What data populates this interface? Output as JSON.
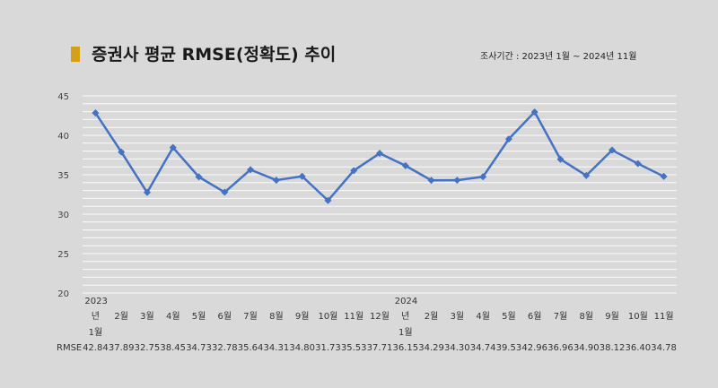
{
  "title": "증권사 평균 RMSE(정확도) 추이",
  "period": "조사기간 : 2023년 1월 ~ 2024년 11월",
  "colors": {
    "line": "#4472c4",
    "marker_bar": "#d4a017",
    "grid": "#ffffff"
  },
  "chart_data": {
    "type": "line",
    "title": "증권사 평균 RMSE(정확도) 추이",
    "xlabel": "",
    "ylabel": "",
    "ylim": [
      20,
      45
    ],
    "yticks": [
      20,
      25,
      30,
      35,
      40,
      45
    ],
    "grid": true,
    "legend": "none",
    "categories": [
      [
        "2023",
        "년",
        "1월"
      ],
      [
        "2월"
      ],
      [
        "3월"
      ],
      [
        "4월"
      ],
      [
        "5월"
      ],
      [
        "6월"
      ],
      [
        "7월"
      ],
      [
        "8월"
      ],
      [
        "9월"
      ],
      [
        "10월"
      ],
      [
        "11월"
      ],
      [
        "12월"
      ],
      [
        "2024",
        "년",
        "1월"
      ],
      [
        "2월"
      ],
      [
        "3월"
      ],
      [
        "4월"
      ],
      [
        "5월"
      ],
      [
        "6월"
      ],
      [
        "7월"
      ],
      [
        "8월"
      ],
      [
        "9월"
      ],
      [
        "10월"
      ],
      [
        "11월"
      ]
    ],
    "table_row_label": "RMSE",
    "series": [
      {
        "name": "RMSE",
        "values": [
          42.84,
          37.89,
          32.75,
          38.45,
          34.73,
          32.78,
          35.64,
          34.31,
          34.8,
          31.73,
          35.53,
          37.71,
          36.15,
          34.29,
          34.3,
          34.74,
          39.53,
          42.96,
          36.96,
          34.9,
          38.12,
          36.4,
          34.78
        ],
        "labels": [
          "42.84",
          "37.89",
          "32.75",
          "38.45",
          "34.73",
          "32.78",
          "35.64",
          "34.31",
          "34.80",
          "31.73",
          "35.53",
          "37.71",
          "36.15",
          "34.29",
          "34.30",
          "34.74",
          "39.53",
          "42.96",
          "36.96",
          "34.90",
          "38.12",
          "36.40",
          "34.78"
        ]
      }
    ]
  }
}
